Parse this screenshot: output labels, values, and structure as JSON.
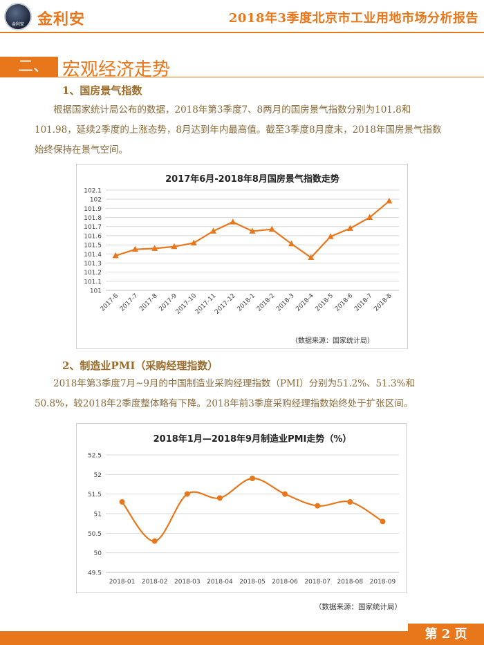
{
  "header": {
    "brand": "金利安",
    "logo_text": "金利安",
    "report_title": "2018年3季度北京市工业用地市场分析报告"
  },
  "section": {
    "number": "二、",
    "title": "宏观经济走势"
  },
  "sub1": {
    "title": "1、国房景气指数",
    "paragraph": "根据国家统计局公布的数据，2018年第3季度7、8两月的国房景气指数分别为101.8和101.98，延续2季度的上涨态势，8月达到年内最高值。截至3季度8月度末，2018年国房景气指数始终保持在景气空间。"
  },
  "sub2": {
    "title": "2、制造业PMI（采购经理指数）",
    "paragraph": "2018年第3季度7月~9月的中国制造业采购经理指数（PMI）分别为51.2%、51.3%和50.8%，较2018年2季度整体略有下降。2018年前3季度采购经理指数始终处于扩张区间。"
  },
  "chart_data": [
    {
      "type": "line",
      "title": "2017年6月-2018年8月国房景气指数走势",
      "categories": [
        "2017-6",
        "2017-7",
        "2017-8",
        "2017-9",
        "2017-10",
        "2017-11",
        "2017-12",
        "2018-1",
        "2018-2",
        "2018-3",
        "2018-4",
        "2018-5",
        "2018-6",
        "2018-7",
        "2018-8"
      ],
      "values": [
        101.38,
        101.45,
        101.46,
        101.48,
        101.52,
        101.65,
        101.75,
        101.65,
        101.67,
        101.51,
        101.36,
        101.59,
        101.68,
        101.8,
        101.98
      ],
      "ylim": [
        101,
        102.1
      ],
      "yticks": [
        "101",
        "101.1",
        "101.2",
        "101.3",
        "101.4",
        "101.5",
        "101.6",
        "101.7",
        "101.8",
        "101.9",
        "102",
        "102.1"
      ],
      "color": "#e8761b",
      "marker": "triangle",
      "source": "（数据来源：国家统计局）"
    },
    {
      "type": "line",
      "title": "2018年1月—2018年9月制造业PMI走势（%）",
      "categories": [
        "2018-01",
        "2018-02",
        "2018-03",
        "2018-04",
        "2018-05",
        "2018-06",
        "2018-07",
        "2018-08",
        "2018-09"
      ],
      "values": [
        51.3,
        50.3,
        51.5,
        51.4,
        51.9,
        51.5,
        51.2,
        51.3,
        50.8
      ],
      "ylim": [
        49.5,
        52.5
      ],
      "yticks": [
        "49.5",
        "50",
        "50.5",
        "51",
        "51.5",
        "52",
        "52.5"
      ],
      "color": "#e8761b",
      "marker": "circle",
      "source": "（数据来源：国家统计局）"
    }
  ],
  "footer": {
    "page_label": "第 2 页"
  }
}
